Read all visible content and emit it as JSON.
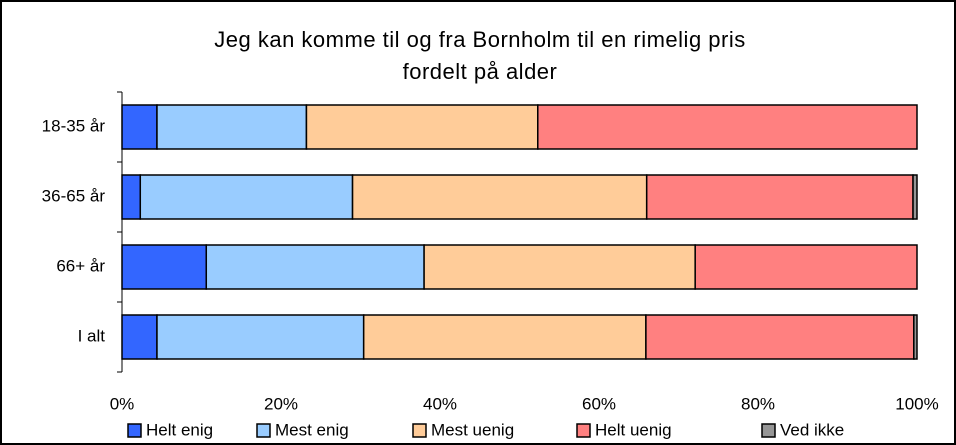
{
  "chart_data": {
    "type": "stacked_bar_horizontal",
    "title": [
      "Jeg kan komme til og fra Bornholm til en rimelig pris",
      "fordelt på alder"
    ],
    "categories": [
      "18-35 år",
      "36-65 år",
      "66+ år",
      "I alt"
    ],
    "series": [
      {
        "name": "Helt enig",
        "color": "#3366ff",
        "values": [
          4.4,
          2.3,
          10.6,
          4.4
        ]
      },
      {
        "name": "Mest enig",
        "color": "#99ccff",
        "values": [
          18.8,
          26.7,
          27.4,
          26.0
        ]
      },
      {
        "name": "Mest uenig",
        "color": "#ffcc99",
        "values": [
          29.1,
          37.0,
          34.1,
          35.5
        ]
      },
      {
        "name": "Helt uenig",
        "color": "#ff8080",
        "values": [
          47.7,
          33.5,
          27.9,
          33.7
        ]
      },
      {
        "name": "Ved ikke",
        "color": "#969696",
        "values": [
          0,
          0.5,
          0,
          0.4
        ]
      }
    ],
    "xlim": [
      0,
      100
    ],
    "xticks": [
      {
        "value": 0,
        "label": "0%"
      },
      {
        "value": 20,
        "label": "20%"
      },
      {
        "value": 40,
        "label": "40%"
      },
      {
        "value": 60,
        "label": "60%"
      },
      {
        "value": 80,
        "label": "80%"
      },
      {
        "value": 100,
        "label": "100%"
      }
    ],
    "legend": "bottom"
  }
}
